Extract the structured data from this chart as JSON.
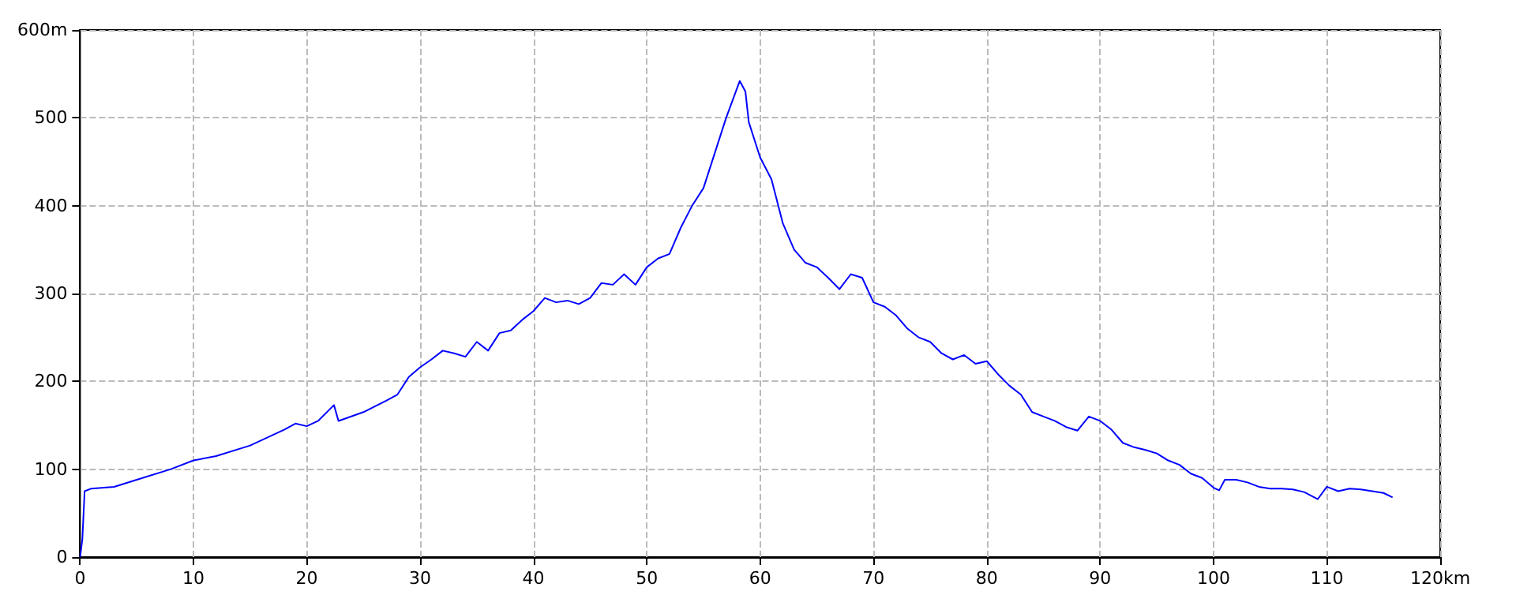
{
  "chart_data": {
    "type": "line",
    "xlim": [
      0,
      120
    ],
    "ylim": [
      0,
      600
    ],
    "xticks": [
      0,
      10,
      20,
      30,
      40,
      50,
      60,
      70,
      80,
      90,
      100,
      110,
      {
        "value": 120,
        "label": "120km"
      }
    ],
    "yticks": [
      0,
      100,
      200,
      300,
      400,
      500,
      {
        "value": 600,
        "label": "600m"
      }
    ],
    "grid": true,
    "line_style": "solid",
    "marker": "none",
    "series": [
      {
        "color": "#0000ff",
        "x": [
          0,
          0.2,
          0.4,
          1,
          3,
          5,
          8,
          10,
          12,
          15,
          18,
          19,
          20,
          21,
          22.4,
          22.8,
          25,
          27,
          28,
          29,
          30,
          31,
          32,
          33,
          34,
          35,
          36,
          37,
          38,
          39,
          40,
          41,
          42,
          43,
          44,
          45,
          46,
          47,
          48,
          49,
          50,
          51,
          52,
          53,
          54,
          55,
          56,
          57,
          58.2,
          58.7,
          59,
          60,
          61,
          62,
          63,
          64,
          65,
          66,
          67,
          68,
          69,
          70,
          71,
          72,
          73,
          74,
          75,
          76,
          77,
          78,
          79,
          80,
          81,
          82,
          83,
          84,
          85,
          86,
          87,
          88,
          89,
          90,
          91,
          92,
          93,
          94,
          95,
          96,
          97,
          98,
          99,
          100,
          100.5,
          101,
          102,
          103,
          104,
          105,
          106,
          107,
          108,
          109.2,
          110,
          111,
          112,
          113,
          114,
          115,
          115.8
        ],
        "values": [
          0,
          20,
          75,
          78,
          80,
          88,
          100,
          110,
          115,
          127,
          145,
          152,
          149,
          155,
          173,
          155,
          165,
          178,
          185,
          205,
          216,
          225,
          235,
          232,
          228,
          245,
          235,
          255,
          258,
          270,
          280,
          295,
          290,
          292,
          288,
          295,
          312,
          310,
          322,
          310,
          330,
          340,
          345,
          375,
          400,
          420,
          460,
          500,
          542,
          530,
          495,
          455,
          430,
          380,
          350,
          335,
          330,
          318,
          305,
          322,
          318,
          290,
          285,
          275,
          260,
          250,
          245,
          232,
          225,
          230,
          220,
          223,
          208,
          195,
          185,
          165,
          160,
          155,
          148,
          144,
          160,
          155,
          145,
          130,
          125,
          122,
          118,
          110,
          105,
          95,
          90,
          79,
          76,
          88,
          88,
          85,
          80,
          78,
          78,
          77,
          74,
          66,
          80,
          75,
          78,
          77,
          75,
          73,
          68
        ]
      }
    ]
  }
}
